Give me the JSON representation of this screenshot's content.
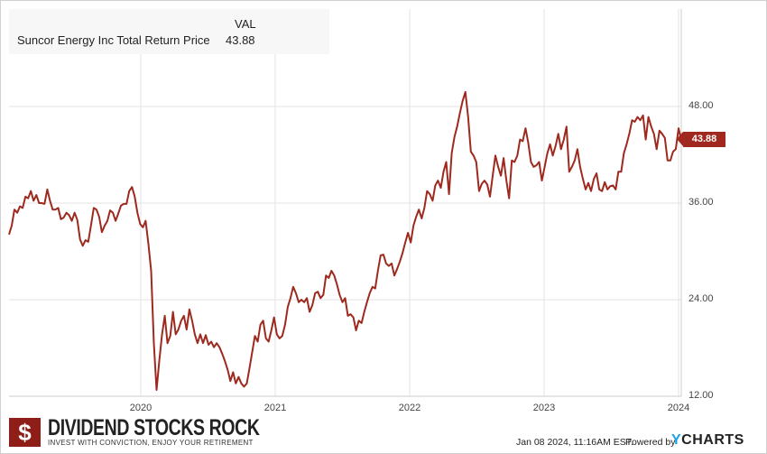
{
  "legend": {
    "header": "VAL",
    "series_name": "Suncor Energy Inc Total Return Price",
    "value": "43.88"
  },
  "last_value_badge": "43.88",
  "footer": {
    "brand": "DIVIDEND STOCKS ROCK",
    "tagline": "INVEST WITH CONVICTION, ENJOY YOUR RETIREMENT",
    "logo_symbol": "$",
    "timestamp": "Jan 08 2024, 11:16AM EST.",
    "powered_by": "Powered by",
    "ycharts_y": "Y",
    "ycharts_rest": "CHARTS"
  },
  "colors": {
    "line": "#9e2a1f",
    "badge": "#a0281e",
    "grid": "#e3e3e3"
  },
  "chart_data": {
    "type": "line",
    "title": "",
    "series": [
      {
        "name": "Suncor Energy Inc Total Return Price",
        "start_year": 2019.02,
        "end_year": 2024.02,
        "values": [
          32.1,
          33.2,
          35.2,
          34.8,
          35.6,
          35.4,
          36.8,
          36.6,
          37.5,
          36.3,
          37.0,
          36.0,
          36.0,
          35.9,
          37.7,
          36.3,
          35.2,
          35.2,
          35.4,
          34.0,
          34.2,
          34.8,
          34.5,
          33.8,
          34.8,
          33.9,
          31.5,
          30.7,
          31.4,
          31.2,
          33.2,
          35.4,
          35.2,
          34.3,
          32.4,
          33.2,
          33.8,
          35.1,
          34.8,
          33.8,
          34.7,
          35.7,
          35.9,
          35.9,
          37.5,
          38.0,
          36.8,
          34.8,
          33.4,
          33.0,
          33.8,
          31.0,
          27.6,
          18.6,
          12.8,
          16.4,
          19.7,
          22.0,
          18.6,
          19.5,
          22.5,
          19.7,
          20.3,
          21.4,
          22.0,
          20.3,
          22.8,
          21.4,
          19.7,
          18.6,
          19.7,
          18.6,
          19.6,
          18.4,
          18.8,
          18.1,
          18.6,
          18.1,
          17.3,
          16.4,
          15.3,
          13.9,
          15.0,
          13.6,
          14.4,
          13.6,
          13.2,
          13.6,
          15.5,
          17.5,
          19.5,
          18.8,
          20.9,
          21.4,
          19.2,
          18.8,
          20.2,
          21.8,
          19.7,
          19.2,
          19.5,
          20.9,
          23.1,
          24.2,
          25.6,
          24.8,
          23.7,
          24.0,
          23.7,
          24.2,
          22.5,
          23.3,
          24.8,
          25.0,
          24.2,
          24.6,
          27.0,
          26.7,
          27.6,
          27.0,
          25.9,
          24.6,
          23.7,
          24.2,
          22.0,
          22.2,
          21.8,
          20.2,
          21.4,
          21.1,
          22.5,
          23.7,
          24.8,
          25.6,
          25.4,
          27.6,
          29.5,
          29.6,
          28.5,
          28.2,
          28.5,
          27.0,
          27.8,
          28.7,
          29.8,
          31.1,
          32.3,
          31.1,
          33.2,
          34.3,
          35.2,
          34.1,
          35.4,
          37.5,
          37.1,
          36.3,
          38.2,
          38.8,
          37.9,
          39.9,
          41.1,
          37.1,
          42.2,
          44.2,
          45.5,
          47.2,
          48.7,
          49.8,
          46.7,
          42.4,
          41.9,
          41.1,
          37.5,
          38.4,
          38.8,
          38.3,
          36.8,
          39.4,
          41.9,
          40.5,
          39.4,
          41.6,
          38.8,
          36.6,
          41.3,
          41.1,
          41.9,
          43.9,
          43.7,
          45.3,
          43.5,
          41.1,
          40.5,
          40.7,
          41.1,
          38.8,
          40.5,
          42.2,
          43.3,
          41.9,
          43.1,
          44.6,
          42.7,
          43.9,
          45.5,
          39.9,
          40.5,
          41.3,
          42.7,
          40.5,
          39.0,
          37.7,
          38.5,
          37.5,
          39.0,
          39.7,
          37.7,
          37.5,
          38.6,
          37.7,
          38.1,
          38.2,
          37.7,
          39.9,
          39.9,
          42.2,
          43.3,
          44.6,
          46.3,
          46.1,
          46.7,
          46.3,
          46.9,
          43.9,
          46.7,
          45.5,
          44.6,
          42.7,
          45.0,
          44.6,
          44.1,
          41.3,
          41.3,
          42.4,
          42.7,
          45.3,
          43.88
        ]
      }
    ],
    "x_ticks": [
      {
        "year": 2020,
        "label": "2020"
      },
      {
        "year": 2021,
        "label": "2021"
      },
      {
        "year": 2022,
        "label": "2022"
      },
      {
        "year": 2023,
        "label": "2023"
      },
      {
        "year": 2024,
        "label": "2024"
      }
    ],
    "y_ticks": [
      {
        "value": 48,
        "label": "48.00"
      },
      {
        "value": 36,
        "label": "36.00"
      },
      {
        "value": 24,
        "label": "24.00"
      },
      {
        "value": 12,
        "label": "12.00"
      }
    ],
    "xlim": [
      2019.02,
      2024.04
    ],
    "ylim": [
      11.2,
      49.9
    ],
    "y_axis_side": "right",
    "grid": true,
    "legend_position": "top-left"
  }
}
